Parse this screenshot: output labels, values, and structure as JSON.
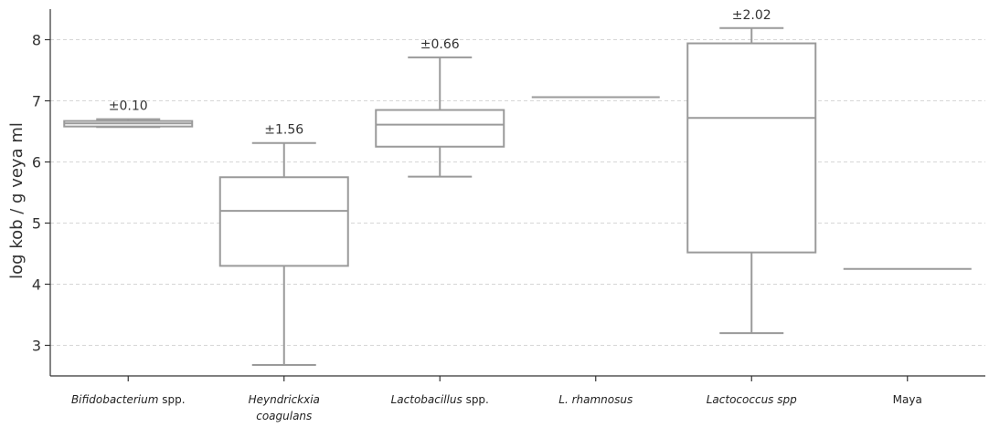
{
  "chart_data": {
    "type": "box",
    "ylabel": "log kob / g veya ml",
    "ylim": [
      2.5,
      8.5
    ],
    "yticks": [
      3,
      4,
      5,
      6,
      7,
      8
    ],
    "grid": true,
    "categories": [
      {
        "label": "Bifidobacterium",
        "label_suffix": " spp.",
        "label_italic": true,
        "label2": ""
      },
      {
        "label": "Heyndrickxia",
        "label_suffix": "",
        "label_italic": true,
        "label2": "coagulans"
      },
      {
        "label": "Lactobacillus",
        "label_suffix": " spp.",
        "label_italic": true,
        "label2": ""
      },
      {
        "label": "L. rhamnosus",
        "label_suffix": "",
        "label_italic": true,
        "label2": ""
      },
      {
        "label": "Lactococcus spp",
        "label_suffix": "",
        "label_italic": true,
        "label2": ""
      },
      {
        "label": "Maya",
        "label_suffix": "",
        "label_italic": false,
        "label2": ""
      }
    ],
    "boxes": [
      {
        "min": 6.57,
        "q1": 6.58,
        "median": 6.63,
        "q3": 6.67,
        "max": 6.7,
        "annotation": "±0.10"
      },
      {
        "min": 2.68,
        "q1": 4.3,
        "median": 5.2,
        "q3": 5.75,
        "max": 6.31,
        "annotation": "±1.56"
      },
      {
        "min": 5.76,
        "q1": 6.25,
        "median": 6.61,
        "q3": 6.85,
        "max": 7.71,
        "annotation": "±0.66"
      },
      {
        "min": 7.06,
        "q1": 7.06,
        "median": 7.06,
        "q3": 7.06,
        "max": 7.06,
        "annotation": ""
      },
      {
        "min": 3.2,
        "q1": 4.52,
        "median": 6.72,
        "q3": 7.94,
        "max": 8.19,
        "annotation": "±2.02"
      },
      {
        "min": 4.25,
        "q1": 4.25,
        "median": 4.25,
        "q3": 4.25,
        "max": 4.25,
        "annotation": ""
      }
    ]
  }
}
